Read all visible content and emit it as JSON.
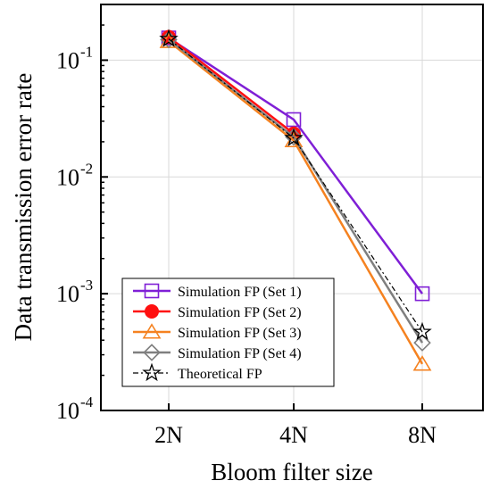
{
  "chart_data": {
    "type": "line",
    "xlabel": "Bloom filter size",
    "ylabel": "Data transmission error rate",
    "categories": [
      "2N",
      "4N",
      "8N"
    ],
    "yscale": "log",
    "ylim": [
      0.0001,
      0.3
    ],
    "yticks": [
      {
        "value": 0.1,
        "base": "10",
        "exp": "-1"
      },
      {
        "value": 0.01,
        "base": "10",
        "exp": "-2"
      },
      {
        "value": 0.001,
        "base": "10",
        "exp": "-3"
      },
      {
        "value": 0.0001,
        "base": "10",
        "exp": "-4"
      }
    ],
    "grid": true,
    "legend_position": "bottom-left",
    "series": [
      {
        "name": "Simulation FP (Set 1)",
        "values": [
          0.155,
          0.031,
          0.001
        ],
        "color": "#7f1fd6",
        "marker": "square",
        "line": "solid"
      },
      {
        "name": "Simulation FP (Set 2)",
        "values": [
          0.158,
          0.0235,
          null
        ],
        "color": "#ff1010",
        "marker": "circle",
        "line": "solid"
      },
      {
        "name": "Simulation FP (Set 3)",
        "values": [
          0.145,
          0.0205,
          0.00025
        ],
        "color": "#f58220",
        "marker": "triangle",
        "line": "solid"
      },
      {
        "name": "Simulation FP (Set 4)",
        "values": [
          0.15,
          0.022,
          0.00038
        ],
        "color": "#7f7f7f",
        "marker": "diamond",
        "line": "solid"
      },
      {
        "name": "Theoretical FP",
        "values": [
          0.152,
          0.0215,
          0.00047
        ],
        "color": "#000000",
        "marker": "star",
        "line": "dashdot"
      }
    ]
  }
}
